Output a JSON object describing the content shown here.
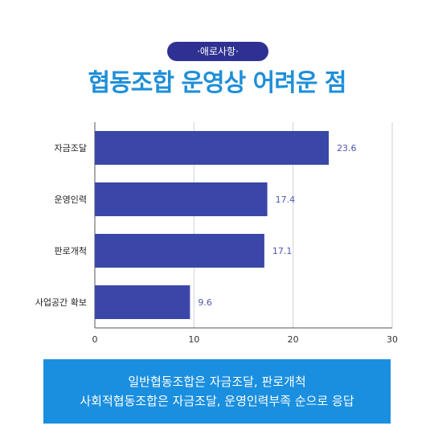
{
  "badge": "·애로사항·",
  "title": "협동조합 운영상 어려운 점",
  "colors": {
    "bar": "#3a47a8",
    "badge": "#2e3192",
    "title": "#1f8fd8",
    "note": "#1a8fdf",
    "value_label": "#4c57b0"
  },
  "chart_data": {
    "type": "bar",
    "orientation": "horizontal",
    "categories": [
      "자금조달",
      "운영인력",
      "판로개척",
      "사업공간 확보"
    ],
    "values": [
      23.6,
      17.4,
      17.1,
      9.6
    ],
    "value_labels": [
      "23.6",
      "17.4",
      "17.1",
      "9.6"
    ],
    "xlim": [
      0,
      30
    ],
    "xticks": [
      "0",
      "10",
      "20",
      "30"
    ],
    "grid": true
  },
  "note": {
    "line1": "일반협동조합은 자금조달, 판로개척",
    "line2": "사회적협동조합은 자금조달, 운영인력부족 순으로 응답"
  }
}
